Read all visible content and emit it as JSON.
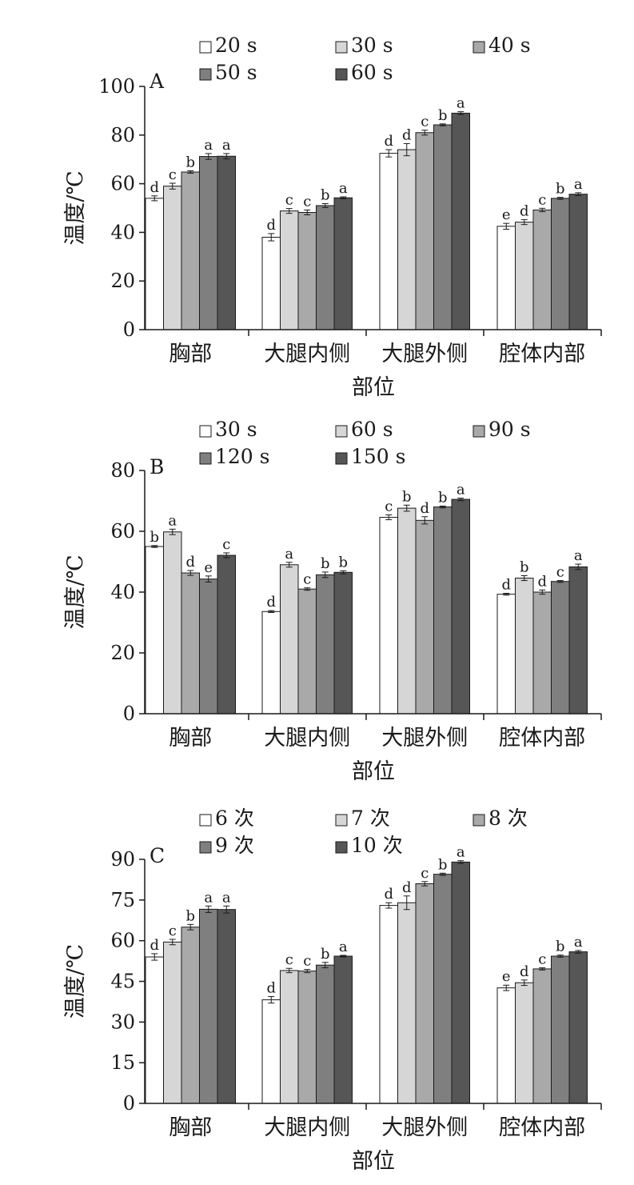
{
  "colors": {
    "series": [
      "#ffffff",
      "#d6d6d6",
      "#a9a9a9",
      "#7f7f7f",
      "#565656"
    ],
    "stroke": "#1a1a1a"
  },
  "chart_data": [
    {
      "type": "bar",
      "panel": "A",
      "categories": [
        "胸部",
        "大腿内侧",
        "大腿外侧",
        "腔体内部"
      ],
      "xlabel": "部位",
      "ylabel": "温度/℃",
      "ylim": [
        0,
        100
      ],
      "yticks": [
        0,
        20,
        40,
        60,
        80,
        100
      ],
      "legend_position": "top",
      "series": [
        {
          "name": "20 s",
          "values": [
            54,
            38,
            72.5,
            42.5
          ],
          "errors": [
            1,
            1.5,
            1.5,
            1.2
          ],
          "letters": [
            "d",
            "d",
            "d",
            "e"
          ]
        },
        {
          "name": "30 s",
          "values": [
            59,
            48.8,
            74,
            44.2
          ],
          "errors": [
            1.2,
            1,
            2.5,
            1
          ],
          "letters": [
            "c",
            "c",
            "d",
            "d"
          ]
        },
        {
          "name": "40 s",
          "values": [
            64.8,
            48.2,
            81,
            49.2
          ],
          "errors": [
            0.5,
            1,
            1,
            0.7
          ],
          "letters": [
            "b",
            "c",
            "c",
            "c"
          ]
        },
        {
          "name": "50 s",
          "values": [
            71.2,
            51,
            84.2,
            54
          ],
          "errors": [
            1.2,
            0.8,
            0.4,
            0.4
          ],
          "letters": [
            "a",
            "b",
            "b",
            "b"
          ]
        },
        {
          "name": "60 s",
          "values": [
            71.3,
            54.2,
            89,
            55.7
          ],
          "errors": [
            1.1,
            0.4,
            0.6,
            0.6
          ],
          "letters": [
            "a",
            "a",
            "a",
            "a"
          ]
        }
      ]
    },
    {
      "type": "bar",
      "panel": "B",
      "categories": [
        "胸部",
        "大腿内侧",
        "大腿外侧",
        "腔体内部"
      ],
      "xlabel": "部位",
      "ylabel": "温度/℃",
      "ylim": [
        0,
        80
      ],
      "yticks": [
        0,
        20,
        40,
        60,
        80
      ],
      "legend_position": "top",
      "series": [
        {
          "name": "30 s",
          "values": [
            55,
            33.6,
            64.6,
            39.3
          ],
          "errors": [
            0.3,
            0.3,
            0.8,
            0.3
          ],
          "letters": [
            "b",
            "d",
            "c",
            "d"
          ]
        },
        {
          "name": "60 s",
          "values": [
            59.8,
            49,
            67.6,
            44.6
          ],
          "errors": [
            0.9,
            0.8,
            1,
            0.8
          ],
          "letters": [
            "a",
            "a",
            "b",
            "b"
          ]
        },
        {
          "name": "90 s",
          "values": [
            46.3,
            41,
            63.6,
            40
          ],
          "errors": [
            0.8,
            0.4,
            1.2,
            0.7
          ],
          "letters": [
            "d",
            "c",
            "d",
            "d"
          ]
        },
        {
          "name": "120 s",
          "values": [
            44.3,
            45.7,
            68,
            43.5
          ],
          "errors": [
            1,
            0.9,
            0.3,
            0.3
          ],
          "letters": [
            "e",
            "b",
            "b",
            "c"
          ]
        },
        {
          "name": "150 s",
          "values": [
            52.1,
            46.5,
            70.5,
            48.3
          ],
          "errors": [
            0.8,
            0.5,
            0.4,
            0.9
          ],
          "letters": [
            "c",
            "b",
            "a",
            "a"
          ]
        }
      ]
    },
    {
      "type": "bar",
      "panel": "C",
      "categories": [
        "胸部",
        "大腿内侧",
        "大腿外侧",
        "腔体内部"
      ],
      "xlabel": "部位",
      "ylabel": "温度/℃",
      "ylim": [
        0,
        90
      ],
      "yticks": [
        0,
        15,
        30,
        45,
        60,
        75,
        90
      ],
      "legend_position": "top",
      "series": [
        {
          "name": "6 次",
          "values": [
            54,
            38.2,
            73,
            42.6
          ],
          "errors": [
            1.2,
            1.2,
            1,
            1
          ],
          "letters": [
            "d",
            "d",
            "d",
            "e"
          ]
        },
        {
          "name": "7 次",
          "values": [
            59.5,
            49,
            74,
            44.5
          ],
          "errors": [
            1,
            0.8,
            2.5,
            1
          ],
          "letters": [
            "c",
            "c",
            "d",
            "d"
          ]
        },
        {
          "name": "8 次",
          "values": [
            65,
            48.8,
            81,
            49.6
          ],
          "errors": [
            1,
            0.6,
            0.8,
            0.4
          ],
          "letters": [
            "b",
            "c",
            "c",
            "c"
          ]
        },
        {
          "name": "9 次",
          "values": [
            71.6,
            51,
            84.5,
            54.3
          ],
          "errors": [
            1.2,
            1,
            0.4,
            0.4
          ],
          "letters": [
            "a",
            "b",
            "b",
            "b"
          ]
        },
        {
          "name": "10 次",
          "values": [
            71.5,
            54.3,
            89,
            55.9
          ],
          "errors": [
            1.3,
            0.3,
            0.5,
            0.5
          ],
          "letters": [
            "a",
            "a",
            "a",
            "a"
          ]
        }
      ]
    }
  ]
}
